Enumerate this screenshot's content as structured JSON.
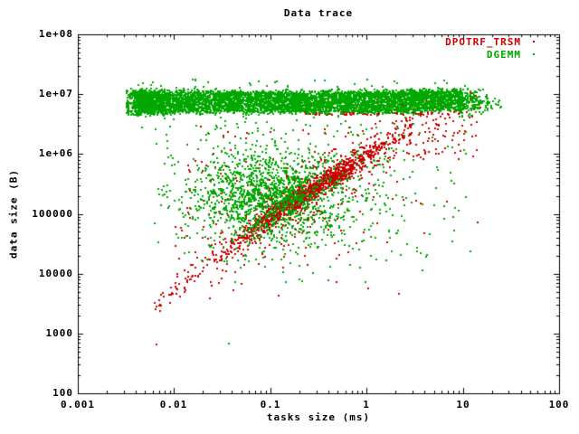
{
  "chart_data": {
    "type": "scatter",
    "title": "Data trace",
    "xlabel": "tasks size (ms)",
    "ylabel": "data size (B)",
    "x_scale": "log",
    "y_scale": "log",
    "xlim": [
      0.001,
      100
    ],
    "ylim": [
      100,
      100000000
    ],
    "grid": false,
    "x_tick_labels": [
      "0.001",
      "0.01",
      "0.1",
      "1",
      "10",
      "100"
    ],
    "y_tick_labels": [
      "100",
      "1000",
      "10000",
      "100000",
      "1e+06",
      "1e+07",
      "1e+08"
    ],
    "minor_tick_mantissas": [
      2,
      3,
      4,
      5,
      6,
      7,
      8,
      9
    ],
    "legend_position": "top-right-inside",
    "background_color": "#ffffff",
    "axis_color": "#000000",
    "seed": 42,
    "series": [
      {
        "name": "DPOTRF_TRSM",
        "color": "#cc0000",
        "marker": "dot",
        "clusters": [
          {
            "n": 1100,
            "lx": {
              "dist": "gauss",
              "mu": -0.6,
              "sd": 0.4,
              "min": -1.6,
              "max": 0.48
            },
            "line": {
              "x0": -1.0,
              "y0": 4.95,
              "slope_hi": 1.02,
              "slope_lo": 1.25,
              "fuzz": 0.085
            }
          },
          {
            "n": 420,
            "lx": {
              "dist": "gauss",
              "mu": -0.55,
              "sd": 0.55,
              "min": -1.9,
              "max": 0.75
            },
            "line": {
              "x0": -1.0,
              "y0": 4.95,
              "slope_hi": 1.02,
              "slope_lo": 1.25,
              "fuzz": 0.26
            }
          },
          {
            "n": 55,
            "lx": {
              "dist": "uniform",
              "a": -2.2,
              "b": -1.5
            },
            "line": {
              "x0": -1.0,
              "y0": 4.95,
              "slope_hi": 1.02,
              "slope_lo": 1.22,
              "fuzz": 0.1
            }
          },
          {
            "n": 80,
            "lx": {
              "dist": "uniform",
              "a": 0.3,
              "b": 1.15
            },
            "ly": {
              "dist": "uniform",
              "a": 5.9,
              "b": 6.65
            }
          },
          {
            "n": 110,
            "lx": {
              "dist": "uniform",
              "a": -0.65,
              "b": 1.05
            },
            "ly": {
              "dist": "uniform",
              "a": 6.66,
              "b": 6.71,
              "fuzz": 0.01
            }
          },
          {
            "n": 80,
            "lx": {
              "dist": "uniform",
              "a": 0.0,
              "b": 1.3
            },
            "ly": {
              "dist": "uniform",
              "a": 6.75,
              "b": 7.05
            }
          },
          {
            "n": 170,
            "lx": {
              "dist": "gauss",
              "mu": -0.85,
              "sd": 0.75,
              "min": -2.0,
              "max": 1.2
            },
            "ly": {
              "dist": "gauss",
              "mu": 5.15,
              "sd": 0.62,
              "max": 6.5
            }
          }
        ],
        "points_log": [
          [
            -2.18,
            2.82
          ]
        ]
      },
      {
        "name": "DGEMM",
        "color": "#00a800",
        "marker": "dot",
        "clusters": [
          {
            "n": 5200,
            "lx": {
              "dist": "uniform",
              "a": -2.42,
              "b": 0.98
            },
            "ly": {
              "dist": "uniform",
              "a": 6.7,
              "b": 7.04,
              "fuzz": 0.022
            },
            "tilt": {
              "from": 0.2,
              "k": 0.05
            }
          },
          {
            "n": 550,
            "lx": {
              "dist": "gauss",
              "mu": -2.3,
              "sd": 0.1,
              "min": -2.5,
              "max": -2.05
            },
            "ly": {
              "dist": "uniform",
              "a": 6.66,
              "b": 7.06,
              "fuzz": 0.02
            }
          },
          {
            "n": 230,
            "lx": {
              "dist": "gauss",
              "mu": 0.95,
              "sd": 0.22,
              "min": 0.95,
              "max": 1.4
            },
            "ly": {
              "dist": "gauss",
              "mu": 6.87,
              "sd": 0.09,
              "min": 6.6,
              "max": 7.1
            }
          },
          {
            "n": 260,
            "lx": {
              "dist": "uniform",
              "a": -2.4,
              "b": 1.05
            },
            "ly": {
              "dist": "gauss",
              "mu": 6.88,
              "sd": 0.2,
              "min": 6.35,
              "max": 7.25
            }
          },
          {
            "n": 1350,
            "lx": {
              "dist": "gauss",
              "mu": -1.02,
              "sd": 0.4,
              "min": -2.2,
              "max": 0.3
            },
            "ly": {
              "dist": "gauss",
              "mu": 5.28,
              "sd": 0.38,
              "max": 6.45
            }
          },
          {
            "n": 420,
            "lx": {
              "dist": "gauss",
              "mu": -0.6,
              "sd": 0.85,
              "min": -2.2,
              "max": 1.15
            },
            "ly": {
              "dist": "gauss",
              "mu": 5.45,
              "sd": 0.62,
              "max": 6.5
            }
          },
          {
            "n": 22,
            "lx": {
              "dist": "uniform",
              "a": -1.55,
              "b": 0.85
            },
            "ly": {
              "dist": "uniform",
              "a": 3.85,
              "b": 4.65
            }
          }
        ],
        "points_log": [
          [
            -1.43,
            2.83
          ]
        ]
      }
    ]
  }
}
